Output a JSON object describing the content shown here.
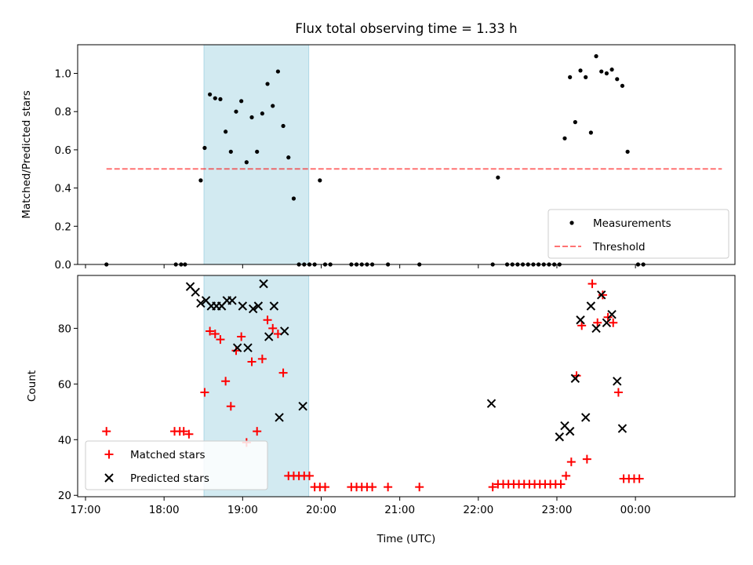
{
  "chart_data": {
    "title": "Flux total observing time = 1.33 h",
    "xlabel": "Time (UTC)",
    "x_ticks": [
      {
        "t": 1020,
        "label": "17:00"
      },
      {
        "t": 1080,
        "label": "18:00"
      },
      {
        "t": 1140,
        "label": "19:00"
      },
      {
        "t": 1200,
        "label": "20:00"
      },
      {
        "t": 1260,
        "label": "21:00"
      },
      {
        "t": 1320,
        "label": "22:00"
      },
      {
        "t": 1380,
        "label": "23:00"
      },
      {
        "t": 1440,
        "label": "00:00"
      }
    ],
    "xlim": [
      1014,
      1516
    ],
    "shaded_interval": [
      1110.5,
      1190.5
    ],
    "shade_color": "#add8e6",
    "panels": [
      {
        "type": "scatter",
        "ylabel": "Matched/Predicted stars",
        "ylim": [
          0,
          1.15
        ],
        "y_ticks": [
          "0.0",
          "0.2",
          "0.4",
          "0.6",
          "0.8",
          "1.0"
        ],
        "threshold": {
          "name": "Threshold",
          "value": 0.5,
          "x_range": [
            1036,
            1506
          ],
          "color": "#ff0000"
        },
        "legend_position": "lower-right",
        "series": [
          {
            "name": "Measurements",
            "color": "#000000",
            "marker": "dot",
            "points": [
              [
                1036,
                0
              ],
              [
                1089,
                0
              ],
              [
                1093,
                0
              ],
              [
                1096,
                0
              ],
              [
                1108,
                0.44
              ],
              [
                1111,
                0.61
              ],
              [
                1115,
                0.89
              ],
              [
                1119,
                0.87
              ],
              [
                1123,
                0.865
              ],
              [
                1127,
                0.695
              ],
              [
                1131,
                0.59
              ],
              [
                1135,
                0.8
              ],
              [
                1139,
                0.855
              ],
              [
                1143,
                0.535
              ],
              [
                1147,
                0.77
              ],
              [
                1151,
                0.59
              ],
              [
                1155,
                0.79
              ],
              [
                1159,
                0.945
              ],
              [
                1163,
                0.83
              ],
              [
                1167,
                1.01
              ],
              [
                1171,
                0.725
              ],
              [
                1175,
                0.56
              ],
              [
                1179,
                0.345
              ],
              [
                1183,
                0
              ],
              [
                1187,
                0
              ],
              [
                1191,
                0
              ],
              [
                1195,
                0
              ],
              [
                1199,
                0.44
              ],
              [
                1203,
                0
              ],
              [
                1207,
                0
              ],
              [
                1223,
                0
              ],
              [
                1227,
                0
              ],
              [
                1231,
                0
              ],
              [
                1235,
                0
              ],
              [
                1239,
                0
              ],
              [
                1251,
                0
              ],
              [
                1275,
                0
              ],
              [
                1331,
                0
              ],
              [
                1335,
                0.455
              ],
              [
                1342,
                0
              ],
              [
                1346,
                0
              ],
              [
                1350,
                0
              ],
              [
                1354,
                0
              ],
              [
                1358,
                0
              ],
              [
                1362,
                0
              ],
              [
                1366,
                0
              ],
              [
                1370,
                0
              ],
              [
                1374,
                0
              ],
              [
                1378,
                0
              ],
              [
                1382,
                0
              ],
              [
                1386,
                0.66
              ],
              [
                1390,
                0.98
              ],
              [
                1394,
                0.745
              ],
              [
                1398,
                1.015
              ],
              [
                1402,
                0.98
              ],
              [
                1406,
                0.69
              ],
              [
                1410,
                1.09
              ],
              [
                1414,
                1.01
              ],
              [
                1418,
                1.0
              ],
              [
                1422,
                1.02
              ],
              [
                1426,
                0.97
              ],
              [
                1430,
                0.935
              ],
              [
                1434,
                0.59
              ],
              [
                1442,
                0
              ],
              [
                1446,
                0
              ]
            ]
          }
        ]
      },
      {
        "type": "scatter",
        "ylabel": "Count",
        "ylim": [
          19.5,
          99
        ],
        "y_ticks": [
          "20",
          "40",
          "60",
          "80"
        ],
        "legend_position": "lower-left",
        "series": [
          {
            "name": "Matched stars",
            "color": "#ff0000",
            "marker": "plus",
            "points": [
              [
                1036,
                43
              ],
              [
                1088,
                43
              ],
              [
                1092,
                43
              ],
              [
                1095,
                43
              ],
              [
                1099,
                42
              ],
              [
                1111,
                57
              ],
              [
                1115,
                79
              ],
              [
                1119,
                78
              ],
              [
                1123,
                76
              ],
              [
                1127,
                61
              ],
              [
                1131,
                52
              ],
              [
                1135,
                72
              ],
              [
                1139,
                77
              ],
              [
                1143,
                39
              ],
              [
                1147,
                68
              ],
              [
                1151,
                43
              ],
              [
                1155,
                69
              ],
              [
                1159,
                83
              ],
              [
                1163,
                80
              ],
              [
                1167,
                78
              ],
              [
                1171,
                64
              ],
              [
                1175,
                27
              ],
              [
                1179,
                27
              ],
              [
                1183,
                27
              ],
              [
                1187,
                27
              ],
              [
                1191,
                27
              ],
              [
                1195,
                23
              ],
              [
                1199,
                23
              ],
              [
                1203,
                23
              ],
              [
                1223,
                23
              ],
              [
                1227,
                23
              ],
              [
                1231,
                23
              ],
              [
                1235,
                23
              ],
              [
                1239,
                23
              ],
              [
                1251,
                23
              ],
              [
                1275,
                23
              ],
              [
                1331,
                23
              ],
              [
                1335,
                24
              ],
              [
                1339,
                24
              ],
              [
                1343,
                24
              ],
              [
                1347,
                24
              ],
              [
                1351,
                24
              ],
              [
                1355,
                24
              ],
              [
                1359,
                24
              ],
              [
                1363,
                24
              ],
              [
                1367,
                24
              ],
              [
                1371,
                24
              ],
              [
                1375,
                24
              ],
              [
                1379,
                24
              ],
              [
                1383,
                24
              ],
              [
                1387,
                27
              ],
              [
                1391,
                32
              ],
              [
                1395,
                63
              ],
              [
                1399,
                81
              ],
              [
                1403,
                33
              ],
              [
                1407,
                96
              ],
              [
                1411,
                82
              ],
              [
                1415,
                92
              ],
              [
                1419,
                84
              ],
              [
                1423,
                82
              ],
              [
                1427,
                57
              ],
              [
                1431,
                26
              ],
              [
                1435,
                26
              ],
              [
                1439,
                26
              ],
              [
                1443,
                26
              ]
            ]
          },
          {
            "name": "Predicted stars",
            "color": "#000000",
            "marker": "x",
            "points": [
              [
                1100,
                95
              ],
              [
                1104,
                93
              ],
              [
                1108,
                89
              ],
              [
                1112,
                90
              ],
              [
                1116,
                88
              ],
              [
                1120,
                88
              ],
              [
                1124,
                88
              ],
              [
                1128,
                90
              ],
              [
                1132,
                90
              ],
              [
                1136,
                73
              ],
              [
                1140,
                88
              ],
              [
                1144,
                73
              ],
              [
                1148,
                87
              ],
              [
                1152,
                88
              ],
              [
                1156,
                96
              ],
              [
                1160,
                77
              ],
              [
                1164,
                88
              ],
              [
                1168,
                48
              ],
              [
                1172,
                79
              ],
              [
                1186,
                52
              ],
              [
                1330,
                53
              ],
              [
                1382,
                41
              ],
              [
                1386,
                45
              ],
              [
                1390,
                43
              ],
              [
                1394,
                62
              ],
              [
                1398,
                83
              ],
              [
                1402,
                48
              ],
              [
                1406,
                88
              ],
              [
                1410,
                80
              ],
              [
                1414,
                92
              ],
              [
                1418,
                82
              ],
              [
                1422,
                85
              ],
              [
                1426,
                61
              ],
              [
                1430,
                44
              ]
            ]
          }
        ]
      }
    ]
  }
}
